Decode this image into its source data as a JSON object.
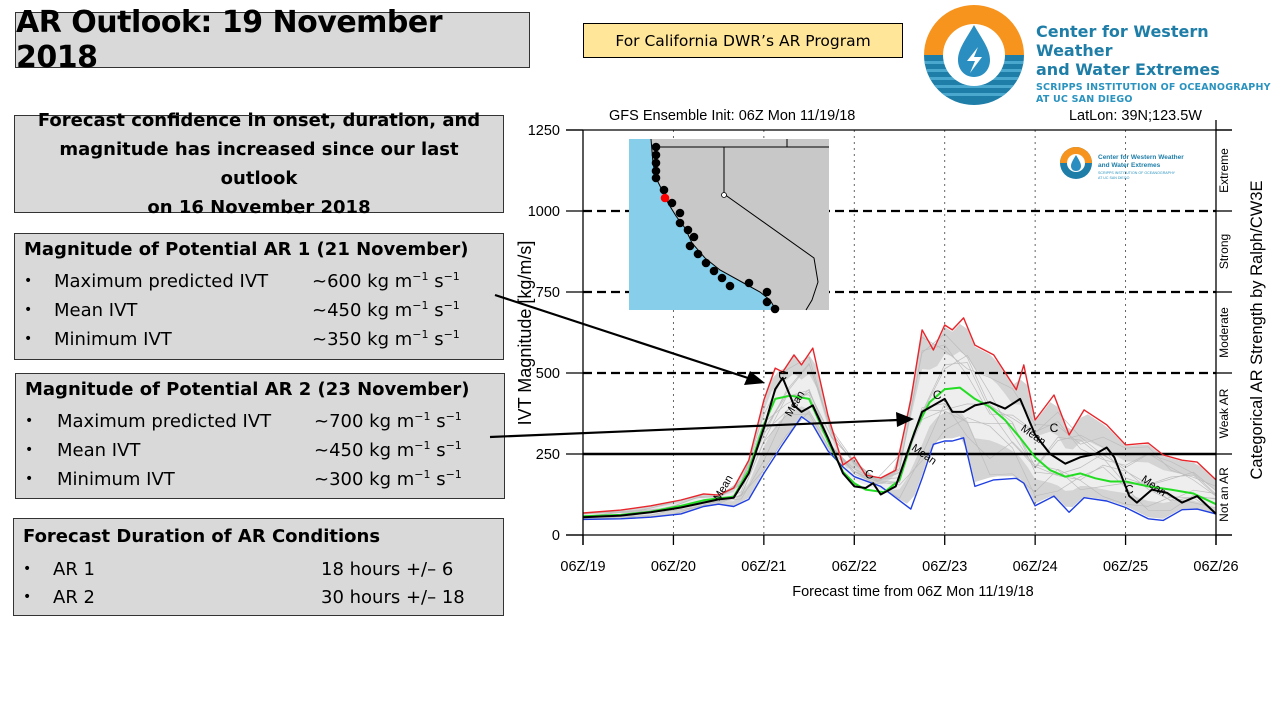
{
  "header": {
    "title": "AR Outlook: 19 November 2018",
    "program_label": "For California DWR’s AR Program"
  },
  "logo": {
    "line1": "Center for Western Weather",
    "line2": "and Water Extremes",
    "line3": "SCRIPPS INSTITUTION OF OCEANOGRAPHY",
    "line4": "AT UC SAN DIEGO",
    "colors": {
      "orange": "#f7941d",
      "blue": "#1f7ea8",
      "teal": "#2a93bf"
    }
  },
  "confidence": {
    "line1": "Forecast confidence in onset, duration, and",
    "line2": "magnitude has increased since our last outlook",
    "line3": "on 16 November 2018"
  },
  "ar1": {
    "heading": "Magnitude of Potential AR 1 (21 November)",
    "rows": [
      {
        "label": "Maximum predicted IVT",
        "value": "~600 kg m",
        "exp1": "−1",
        "unit2": " s",
        "exp2": "−1"
      },
      {
        "label": "Mean IVT",
        "value": "~450 kg m",
        "exp1": "−1",
        "unit2": " s",
        "exp2": "−1"
      },
      {
        "label": "Minimum IVT",
        "value": "~350 kg m",
        "exp1": "−1",
        "unit2": " s",
        "exp2": "−1"
      }
    ]
  },
  "ar2": {
    "heading": "Magnitude of Potential AR 2 (23 November)",
    "rows": [
      {
        "label": "Maximum predicted IVT",
        "value": "~700 kg m",
        "exp1": "−1",
        "unit2": " s",
        "exp2": "−1"
      },
      {
        "label": "Mean IVT",
        "value": "~450 kg m",
        "exp1": "−1",
        "unit2": " s",
        "exp2": "−1"
      },
      {
        "label": "Minimum IVT",
        "value": "~300 kg m",
        "exp1": "−1",
        "unit2": " s",
        "exp2": "−1"
      }
    ]
  },
  "duration": {
    "heading": "Forecast Duration of AR Conditions",
    "rows": [
      {
        "label": "AR 1",
        "value": "18 hours +/– 6"
      },
      {
        "label": "AR 2",
        "value": "30 hours +/– 18"
      }
    ]
  },
  "bullet_char": "•",
  "chart_data": {
    "type": "line",
    "title_left": "GFS Ensemble Init: 06Z Mon 11/19/18",
    "title_right": "LatLon: 39N;123.5W",
    "xlabel": "Forecast time from 06Z Mon 11/19/18",
    "ylabel": "IVT Magnitude [kg/m/s]",
    "right_label": "Categorical AR Strength by Ralph/CW3E",
    "x_unit": "forecast hour",
    "xlim": [
      0,
      168
    ],
    "ylim": [
      0,
      1250
    ],
    "x_ticks": [
      0,
      24,
      48,
      72,
      96,
      120,
      144,
      168
    ],
    "x_tick_labels": [
      "06Z/19",
      "06Z/20",
      "06Z/21",
      "06Z/22",
      "06Z/23",
      "06Z/24",
      "06Z/25",
      "06Z/26"
    ],
    "y_ticks": [
      0,
      250,
      500,
      750,
      1000,
      1250
    ],
    "y_tick_labels": [
      "0",
      "250",
      "500",
      "750",
      "1000",
      "1250"
    ],
    "thresholds": [
      {
        "value": 250,
        "style": "solid"
      },
      {
        "value": 500,
        "style": "dashed"
      },
      {
        "value": 750,
        "style": "dashed"
      },
      {
        "value": 1000,
        "style": "dashed"
      }
    ],
    "categories": [
      {
        "label": "Not an AR",
        "range": [
          0,
          250
        ]
      },
      {
        "label": "Weak AR",
        "range": [
          250,
          500
        ]
      },
      {
        "label": "Moderate",
        "range": [
          500,
          750
        ]
      },
      {
        "label": "Strong",
        "range": [
          750,
          1000
        ]
      },
      {
        "label": "Extreme",
        "range": [
          1000,
          1250
        ]
      }
    ],
    "contour_labels": [
      {
        "text": "Mean",
        "x": 38,
        "y": 140
      },
      {
        "text": "C",
        "x": 53,
        "y": 480
      },
      {
        "text": "Mean",
        "x": 57,
        "y": 400
      },
      {
        "text": "C",
        "x": 76,
        "y": 175
      },
      {
        "text": "Mean",
        "x": 90,
        "y": 240
      },
      {
        "text": "C",
        "x": 94,
        "y": 420
      },
      {
        "text": "Mean",
        "x": 119,
        "y": 300
      },
      {
        "text": "C",
        "x": 125,
        "y": 318
      },
      {
        "text": "C",
        "x": 145,
        "y": 128
      },
      {
        "text": "Mean",
        "x": 151,
        "y": 143
      }
    ],
    "series": [
      {
        "name": "Ensemble max",
        "color": "#e8252b",
        "x": [
          0,
          10,
          18,
          26,
          32,
          36,
          40,
          44,
          48,
          51,
          53,
          56,
          58,
          61,
          65,
          69,
          72,
          75,
          79,
          83,
          87,
          90,
          93,
          96,
          98,
          101,
          104,
          109,
          115,
          117,
          120,
          125,
          129,
          133,
          139,
          144,
          150,
          154,
          159,
          163,
          168
        ],
        "y": [
          68,
          77,
          90,
          108,
          127,
          123,
          145,
          231,
          417,
          515,
          503,
          556,
          525,
          577,
          370,
          216,
          241,
          185,
          176,
          200,
          417,
          633,
          571,
          648,
          633,
          670,
          586,
          556,
          448,
          525,
          355,
          432,
          309,
          386,
          340,
          278,
          284,
          247,
          231,
          225,
          170
        ]
      },
      {
        "name": "Ensemble min",
        "color": "#1f3fe0",
        "x": [
          0,
          10,
          18,
          26,
          32,
          36,
          40,
          44,
          48,
          53,
          58,
          61,
          65,
          69,
          72,
          79,
          87,
          90,
          93,
          96,
          98,
          101,
          104,
          109,
          115,
          117,
          120,
          125,
          129,
          133,
          139,
          144,
          150,
          154,
          159,
          163,
          168
        ],
        "y": [
          48,
          50,
          55,
          65,
          88,
          95,
          88,
          110,
          190,
          280,
          365,
          340,
          260,
          210,
          180,
          150,
          80,
          175,
          280,
          290,
          290,
          300,
          150,
          170,
          175,
          160,
          90,
          120,
          70,
          115,
          105,
          85,
          50,
          45,
          78,
          80,
          65
        ]
      },
      {
        "name": "Ensemble mean",
        "color": "#22dd22",
        "x": [
          0,
          10,
          18,
          26,
          32,
          36,
          40,
          44,
          48,
          51,
          55,
          60,
          65,
          69,
          72,
          75,
          80,
          84,
          88,
          92,
          96,
          100,
          104,
          108,
          112,
          116,
          120,
          124,
          128,
          132,
          136,
          140,
          144,
          150,
          156,
          162,
          168
        ],
        "y": [
          58,
          62,
          72,
          90,
          107,
          113,
          118,
          200,
          340,
          420,
          430,
          420,
          290,
          195,
          160,
          140,
          132,
          170,
          320,
          410,
          450,
          455,
          420,
          395,
          355,
          300,
          240,
          200,
          180,
          190,
          175,
          165,
          165,
          150,
          140,
          128,
          95
        ]
      },
      {
        "name": "Control (C)",
        "color": "#000000",
        "x": [
          0,
          10,
          18,
          26,
          32,
          36,
          40,
          44,
          48,
          51,
          53,
          56,
          58,
          61,
          65,
          69,
          72,
          75,
          77,
          79,
          83,
          87,
          90,
          93,
          96,
          98,
          101,
          104,
          108,
          112,
          116,
          120,
          124,
          128,
          132,
          136,
          139,
          141,
          145,
          147,
          151,
          155,
          159,
          163,
          168
        ],
        "y": [
          55,
          60,
          70,
          85,
          100,
          110,
          115,
          190,
          330,
          450,
          485,
          400,
          380,
          400,
          300,
          190,
          150,
          145,
          160,
          125,
          150,
          285,
          380,
          400,
          420,
          380,
          380,
          400,
          410,
          390,
          420,
          310,
          250,
          220,
          240,
          250,
          270,
          240,
          120,
          100,
          140,
          130,
          100,
          120,
          65
        ]
      }
    ],
    "spread_band_color": "#d4d4d4",
    "member_line_color": "#bdbdbd"
  },
  "inset_map": {
    "ocean_color": "#87ceeb",
    "land_color": "#c8c8c8",
    "marker_color": "#000000",
    "selected_marker_color": "#ff0000"
  }
}
